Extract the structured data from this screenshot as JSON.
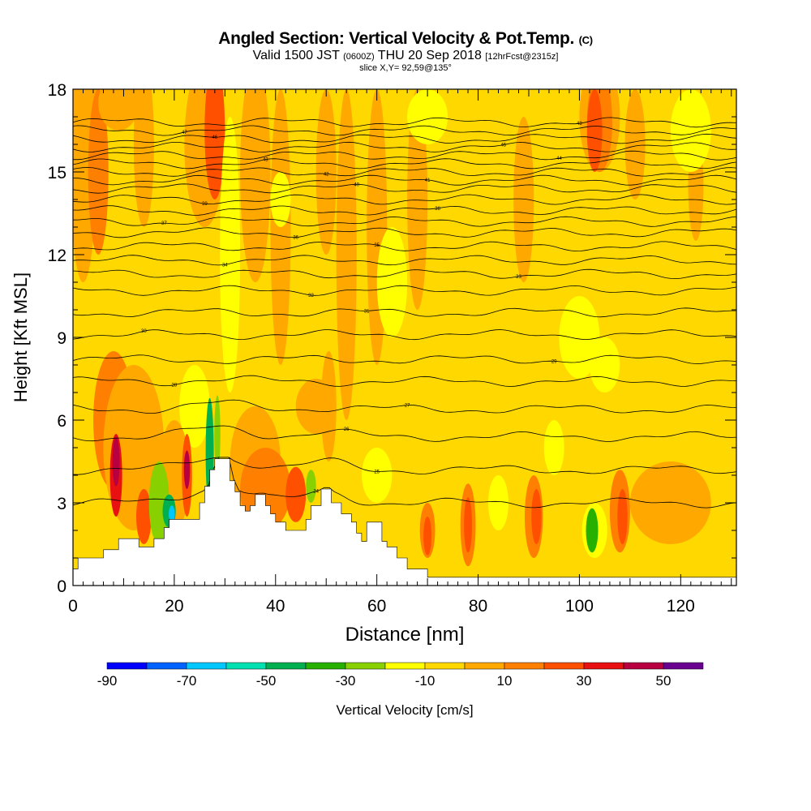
{
  "title": "Angled Section: Vertical Velocity & Pot.Temp.",
  "title_unit": "(C)",
  "subtitle": {
    "part1": "Valid 1500 JST",
    "part2": "(0600Z)",
    "part3": "THU 20 Sep 2018",
    "part4": "[12hrFcst@2315z]"
  },
  "slice_info": "slice X,Y= 92,59@135°",
  "chart_data": {
    "type": "heatmap",
    "xlabel": "Distance [nm]",
    "ylabel": "Height [Kft MSL]",
    "xlim": [
      0,
      131
    ],
    "ylim": [
      0,
      18
    ],
    "x_ticks": [
      "0",
      "20",
      "40",
      "60",
      "80",
      "100",
      "120"
    ],
    "y_ticks": [
      "0",
      "3",
      "6",
      "9",
      "12",
      "15",
      "18"
    ],
    "colorbar": {
      "label": "Vertical Velocity [cm/s]",
      "tick_labels": [
        "-90",
        "-70",
        "-50",
        "-30",
        "-10",
        "10",
        "30",
        "50"
      ],
      "levels": [
        -90,
        -80,
        -70,
        -60,
        -50,
        -40,
        -30,
        -20,
        -10,
        0,
        10,
        20,
        30,
        40,
        50,
        60
      ],
      "colors": [
        "#0000ff",
        "#0063ff",
        "#00c8ff",
        "#00e0b0",
        "#00b050",
        "#28b000",
        "#88d000",
        "#ffff00",
        "#ffd800",
        "#ffa800",
        "#ff8000",
        "#ff5000",
        "#e81010",
        "#b80040",
        "#6a0090"
      ]
    },
    "terrain_nm_kft": [
      [
        0,
        0.6
      ],
      [
        1,
        0.6
      ],
      [
        1,
        1.0
      ],
      [
        6,
        1.0
      ],
      [
        6,
        1.3
      ],
      [
        9,
        1.3
      ],
      [
        9,
        1.7
      ],
      [
        13,
        1.7
      ],
      [
        13,
        1.4
      ],
      [
        16,
        1.4
      ],
      [
        16,
        1.7
      ],
      [
        18,
        1.7
      ],
      [
        18,
        2.1
      ],
      [
        19,
        2.1
      ],
      [
        19,
        2.4
      ],
      [
        25,
        2.4
      ],
      [
        25,
        3.0
      ],
      [
        26,
        3.0
      ],
      [
        26,
        3.6
      ],
      [
        27,
        3.6
      ],
      [
        27,
        4.2
      ],
      [
        28,
        4.2
      ],
      [
        28,
        4.6
      ],
      [
        31,
        4.6
      ],
      [
        31,
        3.8
      ],
      [
        32,
        3.8
      ],
      [
        32,
        3.4
      ],
      [
        33,
        3.4
      ],
      [
        33,
        2.9
      ],
      [
        34,
        2.9
      ],
      [
        34,
        2.7
      ],
      [
        35,
        2.7
      ],
      [
        35,
        2.9
      ],
      [
        36,
        2.9
      ],
      [
        36,
        3.3
      ],
      [
        38,
        3.3
      ],
      [
        38,
        2.9
      ],
      [
        39,
        2.9
      ],
      [
        39,
        2.6
      ],
      [
        40,
        2.6
      ],
      [
        40,
        2.3
      ],
      [
        42,
        2.3
      ],
      [
        42,
        2.0
      ],
      [
        46,
        2.0
      ],
      [
        46,
        2.4
      ],
      [
        47,
        2.4
      ],
      [
        47,
        2.9
      ],
      [
        49,
        2.9
      ],
      [
        49,
        3.5
      ],
      [
        51,
        3.5
      ],
      [
        51,
        3.0
      ],
      [
        53,
        3.0
      ],
      [
        53,
        2.6
      ],
      [
        55,
        2.6
      ],
      [
        55,
        2.3
      ],
      [
        56,
        2.3
      ],
      [
        56,
        1.9
      ],
      [
        57,
        1.9
      ],
      [
        57,
        1.6
      ],
      [
        58,
        1.6
      ],
      [
        58,
        2.3
      ],
      [
        61,
        2.3
      ],
      [
        61,
        1.6
      ],
      [
        62,
        1.6
      ],
      [
        62,
        1.4
      ],
      [
        64,
        1.4
      ],
      [
        64,
        1.0
      ],
      [
        66,
        1.0
      ],
      [
        66,
        0.6
      ],
      [
        70,
        0.6
      ],
      [
        70,
        0.3
      ],
      [
        131,
        0.3
      ]
    ],
    "isentropes": {
      "label_values": [
        "24",
        "25",
        "26",
        "27",
        "28",
        "29",
        "30",
        "31",
        "32",
        "33",
        "34",
        "35",
        "36",
        "37",
        "38",
        "39",
        "40",
        "41",
        "42",
        "43",
        "44",
        "45",
        "46",
        "47",
        "48"
      ]
    }
  }
}
